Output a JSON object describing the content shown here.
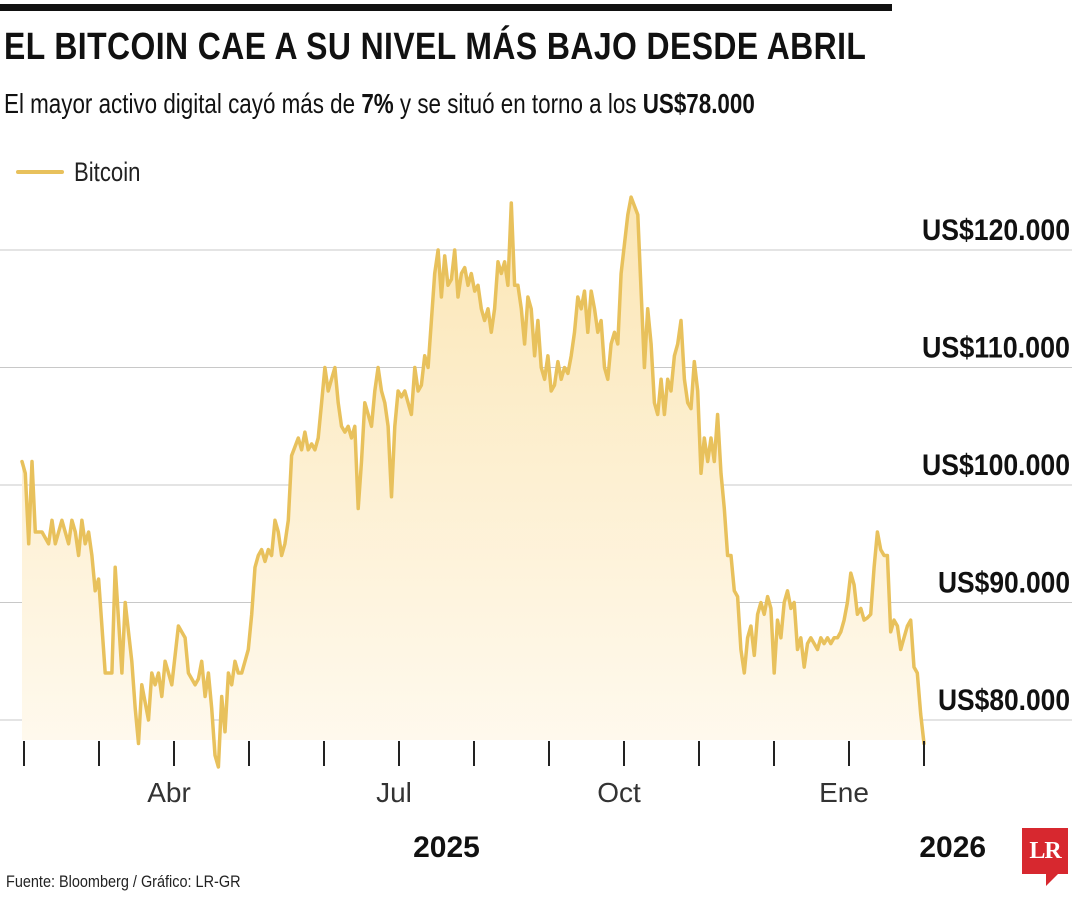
{
  "header": {
    "title": "EL BITCOIN CAE A SU NIVEL MÁS BAJO DESDE ABRIL",
    "subtitle_pre": "El mayor activo digital cayó más de ",
    "subtitle_pct": "7%",
    "subtitle_mid": " y se situó en torno a los ",
    "subtitle_price": "US$78.000"
  },
  "footer": {
    "source": "Fuente: Bloomberg / Gráfico: LR-GR",
    "logo": "LR"
  },
  "colors": {
    "line": "#e8c15c",
    "fill_top": "#fbe6b5",
    "fill_bottom": "#fffaf0",
    "grid": "#c8c8c8",
    "axis": "#222222"
  },
  "chart_data": {
    "type": "area",
    "title": "EL BITCOIN CAE A SU NIVEL MÁS BAJO DESDE ABRIL",
    "legend": [
      "Bitcoin"
    ],
    "legend_position": "top-left",
    "y_ticks": [
      80000,
      90000,
      100000,
      110000,
      120000
    ],
    "y_tick_labels": [
      "US$80.000",
      "US$90.000",
      "US$100.000",
      "US$110.000",
      "US$120.000"
    ],
    "ylim": [
      74000,
      125000
    ],
    "grid": true,
    "x_range": [
      0,
      300
    ],
    "x_ticks": [
      0,
      24,
      48,
      72,
      96,
      120,
      144,
      168,
      192,
      216,
      240,
      264,
      288
    ],
    "x_tick_labels": [
      {
        "label": "Abr",
        "x": 48
      },
      {
        "label": "Jul",
        "x": 120
      },
      {
        "label": "Oct",
        "x": 192
      },
      {
        "label": "Ene",
        "x": 264
      }
    ],
    "year_labels": [
      {
        "label": "2025",
        "x": 132
      },
      {
        "label": "2026",
        "x": 294
      }
    ],
    "series": [
      {
        "name": "Bitcoin",
        "points": [
          [
            0,
            102000
          ],
          [
            1,
            101000
          ],
          [
            2,
            95000
          ],
          [
            3,
            102000
          ],
          [
            4,
            96000
          ],
          [
            6,
            96000
          ],
          [
            8,
            95000
          ],
          [
            9,
            97000
          ],
          [
            10,
            95000
          ],
          [
            12,
            97000
          ],
          [
            14,
            95000
          ],
          [
            15,
            97000
          ],
          [
            16,
            96000
          ],
          [
            17,
            94000
          ],
          [
            18,
            97000
          ],
          [
            19,
            95000
          ],
          [
            20,
            96000
          ],
          [
            21,
            94000
          ],
          [
            22,
            91000
          ],
          [
            23,
            92000
          ],
          [
            24,
            88000
          ],
          [
            25,
            84000
          ],
          [
            27,
            84000
          ],
          [
            28,
            93000
          ],
          [
            30,
            84000
          ],
          [
            31,
            90000
          ],
          [
            33,
            85000
          ],
          [
            34,
            81000
          ],
          [
            35,
            78000
          ],
          [
            36,
            83000
          ],
          [
            38,
            80000
          ],
          [
            39,
            84000
          ],
          [
            40,
            83000
          ],
          [
            41,
            84000
          ],
          [
            42,
            82000
          ],
          [
            43,
            85000
          ],
          [
            44,
            84000
          ],
          [
            45,
            83000
          ],
          [
            47,
            88000
          ],
          [
            49,
            87000
          ],
          [
            50,
            84000
          ],
          [
            52,
            83000
          ],
          [
            53,
            83500
          ],
          [
            54,
            85000
          ],
          [
            55,
            82000
          ],
          [
            56,
            84000
          ],
          [
            57,
            81000
          ],
          [
            58,
            77000
          ],
          [
            59,
            76000
          ],
          [
            60,
            82000
          ],
          [
            61,
            79000
          ],
          [
            62,
            84000
          ],
          [
            63,
            83000
          ],
          [
            64,
            85000
          ],
          [
            65,
            84000
          ],
          [
            66,
            84000
          ],
          [
            67,
            85000
          ],
          [
            68,
            86000
          ],
          [
            69,
            89000
          ],
          [
            70,
            93000
          ],
          [
            71,
            94000
          ],
          [
            72,
            94500
          ],
          [
            73,
            93500
          ],
          [
            74,
            94500
          ],
          [
            75,
            94000
          ],
          [
            76,
            97000
          ],
          [
            77,
            96000
          ],
          [
            78,
            94000
          ],
          [
            79,
            95000
          ],
          [
            80,
            97000
          ],
          [
            81,
            102500
          ],
          [
            83,
            104000
          ],
          [
            84,
            103000
          ],
          [
            85,
            104500
          ],
          [
            86,
            103000
          ],
          [
            87,
            103500
          ],
          [
            88,
            103000
          ],
          [
            89,
            104000
          ],
          [
            90,
            107000
          ],
          [
            91,
            110000
          ],
          [
            92,
            108000
          ],
          [
            93,
            109000
          ],
          [
            94,
            110000
          ],
          [
            95,
            107000
          ],
          [
            96,
            105000
          ],
          [
            97,
            104500
          ],
          [
            98,
            105000
          ],
          [
            99,
            104000
          ],
          [
            100,
            105000
          ],
          [
            101,
            98000
          ],
          [
            102,
            102000
          ],
          [
            103,
            107000
          ],
          [
            104,
            106000
          ],
          [
            105,
            105000
          ],
          [
            106,
            108000
          ],
          [
            107,
            110000
          ],
          [
            108,
            108000
          ],
          [
            109,
            107000
          ],
          [
            110,
            105000
          ],
          [
            111,
            99000
          ],
          [
            112,
            105000
          ],
          [
            113,
            108000
          ],
          [
            114,
            107500
          ],
          [
            115,
            108000
          ],
          [
            116,
            107000
          ],
          [
            117,
            106000
          ],
          [
            118,
            110000
          ],
          [
            119,
            108000
          ],
          [
            120,
            108500
          ],
          [
            121,
            111000
          ],
          [
            122,
            110000
          ],
          [
            123,
            114000
          ],
          [
            124,
            118000
          ],
          [
            125,
            120000
          ],
          [
            126,
            116000
          ],
          [
            127,
            119500
          ],
          [
            128,
            117000
          ],
          [
            129,
            117500
          ],
          [
            130,
            120000
          ],
          [
            131,
            116000
          ],
          [
            132,
            118000
          ],
          [
            133,
            118500
          ],
          [
            134,
            117000
          ],
          [
            135,
            118000
          ],
          [
            136,
            116500
          ],
          [
            137,
            117000
          ],
          [
            138,
            115000
          ],
          [
            139,
            114000
          ],
          [
            140,
            115000
          ],
          [
            141,
            113000
          ],
          [
            142,
            115000
          ],
          [
            143,
            119000
          ],
          [
            144,
            118000
          ],
          [
            145,
            119000
          ],
          [
            146,
            117000
          ],
          [
            147,
            124000
          ],
          [
            148,
            117000
          ],
          [
            149,
            117000
          ],
          [
            150,
            115000
          ],
          [
            151,
            112000
          ],
          [
            152,
            116000
          ],
          [
            153,
            115000
          ],
          [
            154,
            111000
          ],
          [
            155,
            114000
          ],
          [
            156,
            110000
          ],
          [
            157,
            109000
          ],
          [
            158,
            111000
          ],
          [
            159,
            108000
          ],
          [
            160,
            108500
          ],
          [
            161,
            110500
          ],
          [
            162,
            109000
          ],
          [
            163,
            110000
          ],
          [
            164,
            109500
          ],
          [
            165,
            111000
          ],
          [
            166,
            113000
          ],
          [
            167,
            116000
          ],
          [
            168,
            115000
          ],
          [
            169,
            116500
          ],
          [
            170,
            113000
          ],
          [
            171,
            116500
          ],
          [
            172,
            115000
          ],
          [
            173,
            113000
          ],
          [
            174,
            114000
          ],
          [
            175,
            110000
          ],
          [
            176,
            109000
          ],
          [
            177,
            112000
          ],
          [
            178,
            113000
          ],
          [
            179,
            112000
          ],
          [
            180,
            118000
          ],
          [
            182,
            123000
          ],
          [
            183,
            124500
          ],
          [
            185,
            123000
          ],
          [
            187,
            110000
          ],
          [
            188,
            115000
          ],
          [
            189,
            112000
          ],
          [
            190,
            107000
          ],
          [
            191,
            106000
          ],
          [
            192,
            109000
          ],
          [
            193,
            106000
          ],
          [
            194,
            109000
          ],
          [
            195,
            108000
          ],
          [
            196,
            111000
          ],
          [
            197,
            112000
          ],
          [
            198,
            114000
          ],
          [
            199,
            109000
          ],
          [
            200,
            107000
          ],
          [
            201,
            106500
          ],
          [
            202,
            110500
          ],
          [
            203,
            108000
          ],
          [
            204,
            101000
          ],
          [
            205,
            104000
          ],
          [
            206,
            102000
          ],
          [
            207,
            104000
          ],
          [
            208,
            102000
          ],
          [
            209,
            106000
          ],
          [
            210,
            101000
          ],
          [
            211,
            98000
          ],
          [
            212,
            94000
          ],
          [
            213,
            94000
          ],
          [
            214,
            91000
          ],
          [
            215,
            90500
          ],
          [
            216,
            86000
          ],
          [
            217,
            84000
          ],
          [
            218,
            87000
          ],
          [
            219,
            88000
          ],
          [
            220,
            85500
          ],
          [
            221,
            89000
          ],
          [
            222,
            90000
          ],
          [
            223,
            89000
          ],
          [
            224,
            90500
          ],
          [
            225,
            89500
          ],
          [
            226,
            84000
          ],
          [
            227,
            88500
          ],
          [
            228,
            87000
          ],
          [
            229,
            90000
          ],
          [
            230,
            91000
          ],
          [
            231,
            89500
          ],
          [
            232,
            90000
          ],
          [
            233,
            86000
          ],
          [
            234,
            87000
          ],
          [
            235,
            84500
          ],
          [
            236,
            86500
          ],
          [
            237,
            87000
          ],
          [
            238,
            86500
          ],
          [
            239,
            86000
          ],
          [
            240,
            87000
          ],
          [
            241,
            86500
          ],
          [
            242,
            87000
          ],
          [
            243,
            86500
          ],
          [
            244,
            87000
          ],
          [
            245,
            87000
          ],
          [
            246,
            87500
          ],
          [
            247,
            88500
          ],
          [
            248,
            90000
          ],
          [
            249,
            92500
          ],
          [
            250,
            91500
          ],
          [
            251,
            89000
          ],
          [
            252,
            89500
          ],
          [
            253,
            88500
          ],
          [
            254,
            88700
          ],
          [
            255,
            89000
          ],
          [
            256,
            93000
          ],
          [
            257,
            96000
          ],
          [
            258,
            94500
          ],
          [
            259,
            94000
          ],
          [
            260,
            94000
          ],
          [
            261,
            87500
          ],
          [
            262,
            88500
          ],
          [
            263,
            88000
          ],
          [
            264,
            86000
          ],
          [
            265,
            87000
          ],
          [
            266,
            88000
          ],
          [
            267,
            88500
          ],
          [
            268,
            84500
          ],
          [
            269,
            84000
          ],
          [
            270,
            80500
          ],
          [
            271,
            78000
          ]
        ]
      }
    ]
  }
}
